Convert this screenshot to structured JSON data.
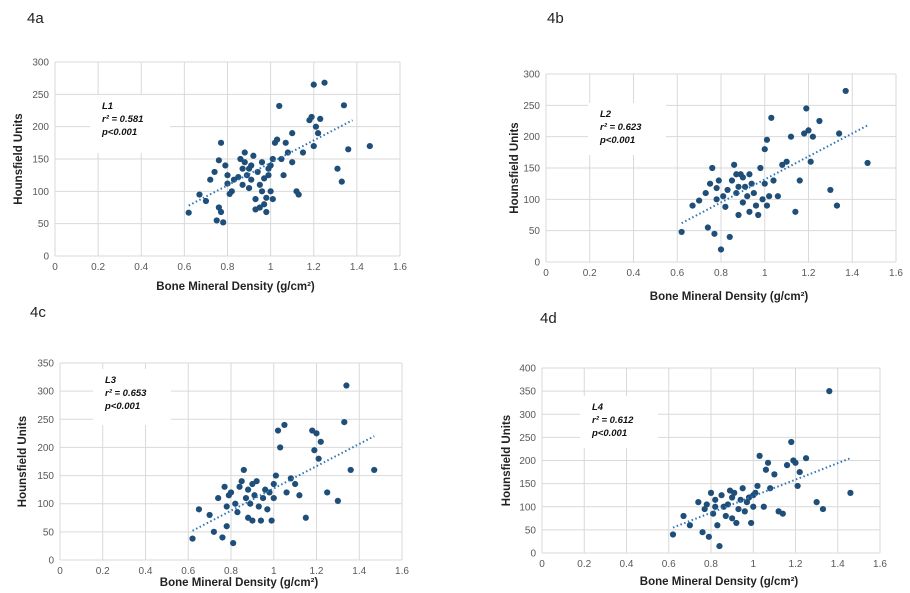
{
  "chart_data": [
    {
      "panel": "4a",
      "type": "scatter",
      "xlabel": "Bone Mineral Density (g/cm²)",
      "ylabel": "Hounsfield Units",
      "xlim": [
        0,
        1.6
      ],
      "ylim": [
        0,
        300
      ],
      "xticks": [
        "0",
        "0.2",
        "0.4",
        "0.6",
        "0.8",
        "1",
        "1.2",
        "1.4",
        "1.6"
      ],
      "yticks": [
        "0",
        "50",
        "100",
        "150",
        "200",
        "250",
        "300"
      ],
      "grid": true,
      "annotation": [
        "L1",
        "r² = 0.581",
        "p<0.001"
      ],
      "trendline": [
        [
          0.62,
          78
        ],
        [
          1.38,
          210
        ]
      ],
      "x": [
        0.62,
        0.67,
        0.7,
        0.72,
        0.74,
        0.75,
        0.76,
        0.76,
        0.77,
        0.77,
        0.78,
        0.79,
        0.8,
        0.8,
        0.81,
        0.82,
        0.83,
        0.85,
        0.86,
        0.87,
        0.87,
        0.88,
        0.88,
        0.89,
        0.9,
        0.9,
        0.91,
        0.91,
        0.92,
        0.93,
        0.93,
        0.94,
        0.95,
        0.95,
        0.96,
        0.96,
        0.97,
        0.97,
        0.98,
        0.98,
        0.99,
        0.99,
        1,
        1,
        1.01,
        1.01,
        1.02,
        1.03,
        1.04,
        1.05,
        1.06,
        1.07,
        1.08,
        1.1,
        1.1,
        1.12,
        1.13,
        1.15,
        1.18,
        1.19,
        1.2,
        1.2,
        1.21,
        1.22,
        1.23,
        1.25,
        1.31,
        1.33,
        1.34,
        1.36,
        1.46
      ],
      "y": [
        67,
        95,
        85,
        118,
        130,
        55,
        148,
        75,
        175,
        68,
        52,
        140,
        112,
        125,
        96,
        100,
        118,
        122,
        150,
        135,
        110,
        145,
        160,
        125,
        135,
        105,
        118,
        140,
        155,
        88,
        72,
        130,
        75,
        110,
        145,
        100,
        80,
        120,
        68,
        90,
        125,
        135,
        100,
        140,
        150,
        88,
        175,
        180,
        232,
        150,
        125,
        175,
        160,
        190,
        145,
        100,
        95,
        160,
        210,
        215,
        170,
        265,
        200,
        190,
        212,
        268,
        135,
        115,
        233,
        165,
        170
      ]
    },
    {
      "panel": "4b",
      "type": "scatter",
      "xlabel": "Bone Mineral Density (g/cm²)",
      "ylabel": "Hounsfield Units",
      "xlim": [
        0,
        1.6
      ],
      "ylim": [
        0,
        300
      ],
      "xticks": [
        "0",
        "0.2",
        "0.4",
        "0.6",
        "0.8",
        "1",
        "1.2",
        "1.4",
        "1.6"
      ],
      "yticks": [
        "0",
        "50",
        "100",
        "150",
        "200",
        "250",
        "300"
      ],
      "grid": true,
      "annotation": [
        "L2",
        "r² = 0.623",
        "p<0.001"
      ],
      "trendline": [
        [
          0.62,
          62
        ],
        [
          1.47,
          218
        ]
      ],
      "x": [
        0.62,
        0.67,
        0.7,
        0.73,
        0.74,
        0.75,
        0.76,
        0.77,
        0.78,
        0.78,
        0.79,
        0.8,
        0.81,
        0.82,
        0.83,
        0.84,
        0.85,
        0.86,
        0.87,
        0.87,
        0.88,
        0.88,
        0.89,
        0.9,
        0.9,
        0.91,
        0.92,
        0.93,
        0.93,
        0.94,
        0.95,
        0.96,
        0.97,
        0.98,
        0.99,
        1,
        1,
        1.01,
        1.01,
        1.02,
        1.03,
        1.04,
        1.06,
        1.08,
        1.1,
        1.12,
        1.14,
        1.16,
        1.18,
        1.19,
        1.2,
        1.21,
        1.22,
        1.25,
        1.3,
        1.33,
        1.34,
        1.37,
        1.47
      ],
      "y": [
        48,
        90,
        98,
        110,
        55,
        125,
        150,
        45,
        100,
        118,
        130,
        20,
        105,
        88,
        115,
        40,
        130,
        155,
        110,
        140,
        120,
        75,
        140,
        135,
        95,
        120,
        105,
        80,
        140,
        125,
        110,
        90,
        75,
        150,
        100,
        125,
        180,
        90,
        195,
        105,
        230,
        130,
        105,
        155,
        160,
        200,
        80,
        130,
        205,
        245,
        210,
        160,
        200,
        225,
        115,
        90,
        205,
        273,
        158
      ]
    },
    {
      "panel": "4c",
      "type": "scatter",
      "xlabel": "Bone Mineral Density (g/cm²)",
      "ylabel": "Hounsfield Units",
      "xlim": [
        0,
        1.6
      ],
      "ylim": [
        0,
        350
      ],
      "xticks": [
        "0",
        "0.2",
        "0.4",
        "0.6",
        "0.8",
        "1",
        "1.2",
        "1.4",
        "1.6"
      ],
      "yticks": [
        "0",
        "50",
        "100",
        "150",
        "200",
        "250",
        "300",
        "350"
      ],
      "grid": true,
      "annotation": [
        "L3",
        "r² = 0.653",
        "p<0.001"
      ],
      "trendline": [
        [
          0.62,
          52
        ],
        [
          1.47,
          220
        ]
      ],
      "x": [
        0.62,
        0.65,
        0.7,
        0.72,
        0.74,
        0.76,
        0.77,
        0.78,
        0.78,
        0.79,
        0.8,
        0.81,
        0.82,
        0.83,
        0.84,
        0.85,
        0.86,
        0.87,
        0.88,
        0.88,
        0.89,
        0.9,
        0.9,
        0.91,
        0.92,
        0.93,
        0.94,
        0.95,
        0.96,
        0.97,
        0.98,
        0.99,
        1,
        1,
        1.01,
        1.02,
        1.03,
        1.05,
        1.06,
        1.08,
        1.1,
        1.12,
        1.15,
        1.18,
        1.19,
        1.2,
        1.21,
        1.22,
        1.25,
        1.3,
        1.33,
        1.34,
        1.36,
        1.47
      ],
      "y": [
        38,
        90,
        80,
        50,
        110,
        40,
        130,
        95,
        60,
        115,
        120,
        30,
        100,
        85,
        130,
        140,
        160,
        110,
        125,
        75,
        100,
        135,
        70,
        115,
        140,
        95,
        70,
        110,
        125,
        90,
        120,
        70,
        135,
        110,
        150,
        230,
        200,
        240,
        120,
        145,
        135,
        115,
        75,
        230,
        195,
        225,
        180,
        210,
        120,
        105,
        245,
        310,
        160,
        160
      ]
    },
    {
      "panel": "4d",
      "type": "scatter",
      "xlabel": "Bone Mineral Density (g/cm²)",
      "ylabel": "Hounsfield Units",
      "xlim": [
        0,
        1.6
      ],
      "ylim": [
        0,
        400
      ],
      "xticks": [
        "0",
        "0.2",
        "0.4",
        "0.6",
        "0.8",
        "1",
        "1.2",
        "1.4",
        "1.6"
      ],
      "yticks": [
        "0",
        "50",
        "100",
        "150",
        "200",
        "250",
        "300",
        "350",
        "400"
      ],
      "grid": true,
      "annotation": [
        "L4",
        "r² = 0.612",
        "p<0.001"
      ],
      "trendline": [
        [
          0.62,
          55
        ],
        [
          1.46,
          205
        ]
      ],
      "x": [
        0.62,
        0.67,
        0.7,
        0.74,
        0.76,
        0.77,
        0.78,
        0.79,
        0.8,
        0.81,
        0.82,
        0.82,
        0.83,
        0.84,
        0.85,
        0.86,
        0.87,
        0.88,
        0.89,
        0.9,
        0.9,
        0.91,
        0.92,
        0.93,
        0.94,
        0.95,
        0.96,
        0.97,
        0.98,
        0.99,
        1,
        1,
        1.01,
        1.02,
        1.03,
        1.05,
        1.06,
        1.07,
        1.08,
        1.1,
        1.12,
        1.14,
        1.16,
        1.18,
        1.19,
        1.2,
        1.21,
        1.22,
        1.25,
        1.3,
        1.33,
        1.36,
        1.46
      ],
      "y": [
        40,
        80,
        60,
        110,
        45,
        95,
        105,
        35,
        130,
        85,
        100,
        115,
        60,
        15,
        125,
        100,
        80,
        105,
        135,
        75,
        120,
        130,
        65,
        95,
        115,
        140,
        90,
        110,
        120,
        65,
        125,
        100,
        130,
        145,
        210,
        100,
        180,
        195,
        140,
        170,
        90,
        85,
        190,
        240,
        200,
        195,
        145,
        175,
        205,
        110,
        95,
        350,
        130
      ]
    }
  ]
}
